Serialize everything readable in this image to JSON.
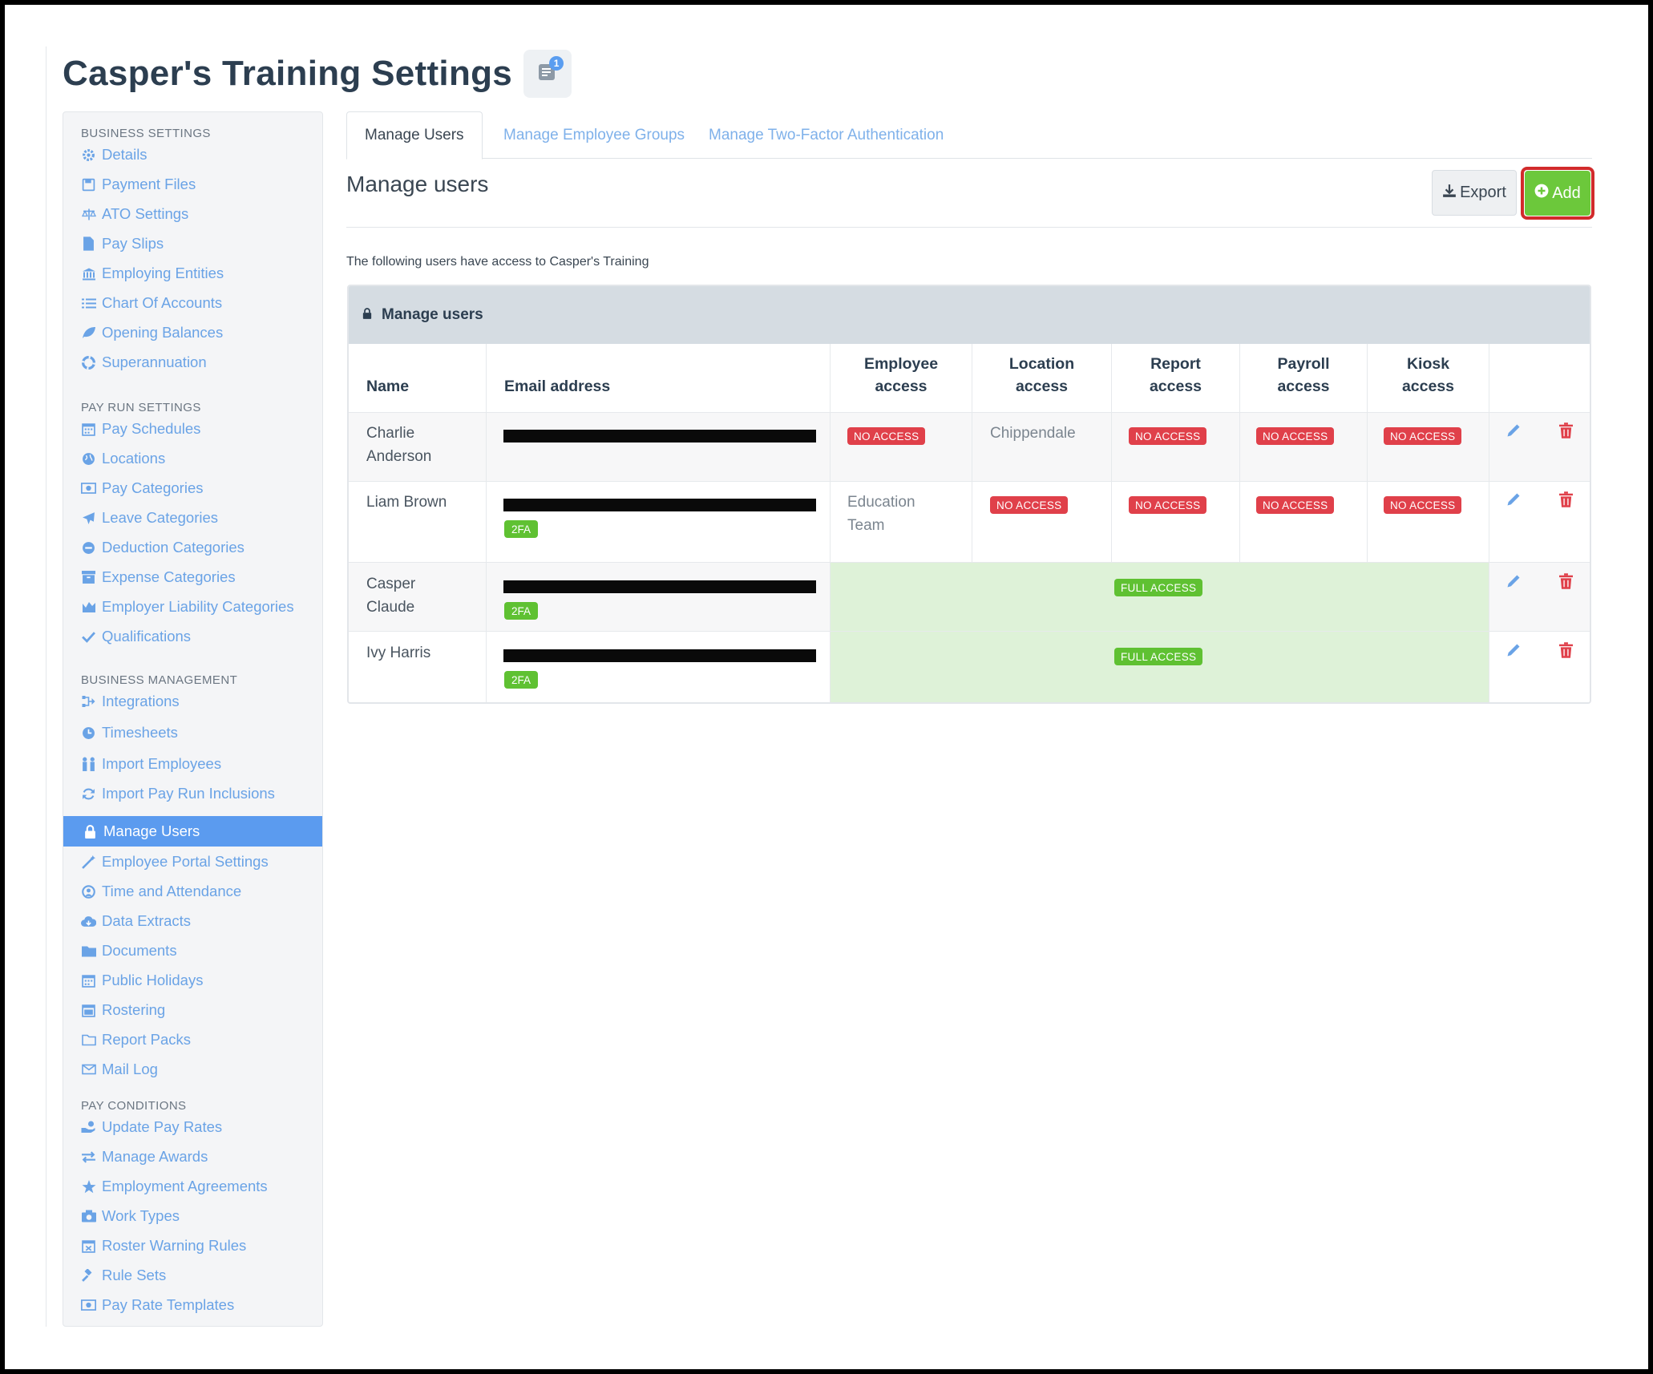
{
  "header": {
    "title": "Casper's Training Settings",
    "badge_count": "1",
    "icon": "notes-icon"
  },
  "sidebar": {
    "sections": [
      {
        "heading": "BUSINESS SETTINGS",
        "items": [
          {
            "label": "Details",
            "icon": "gear-icon"
          },
          {
            "label": "Payment Files",
            "icon": "floppy-icon"
          },
          {
            "label": "ATO Settings",
            "icon": "scale-icon"
          },
          {
            "label": "Pay Slips",
            "icon": "file-icon"
          },
          {
            "label": "Employing Entities",
            "icon": "bank-icon"
          },
          {
            "label": "Chart Of Accounts",
            "icon": "list-icon"
          },
          {
            "label": "Opening Balances",
            "icon": "leaf-icon"
          },
          {
            "label": "Superannuation",
            "icon": "lifebuoy-icon"
          }
        ]
      },
      {
        "heading": "PAY RUN SETTINGS",
        "items": [
          {
            "label": "Pay Schedules",
            "icon": "calendar-icon"
          },
          {
            "label": "Locations",
            "icon": "globe-icon"
          },
          {
            "label": "Pay Categories",
            "icon": "money-icon"
          },
          {
            "label": "Leave Categories",
            "icon": "plane-icon"
          },
          {
            "label": "Deduction Categories",
            "icon": "minus-circle-icon"
          },
          {
            "label": "Expense Categories",
            "icon": "archive-icon"
          },
          {
            "label": "Employer Liability Categories",
            "icon": "chart-icon"
          },
          {
            "label": "Qualifications",
            "icon": "check-icon"
          }
        ]
      },
      {
        "heading": "BUSINESS MANAGEMENT",
        "items": [
          {
            "label": "Integrations",
            "icon": "plug-icon"
          },
          {
            "label": "Timesheets",
            "icon": "clock-icon"
          },
          {
            "label": "Import Employees",
            "icon": "people-icon"
          },
          {
            "label": "Import Pay Run Inclusions",
            "icon": "refresh-icon"
          },
          {
            "label": "Manage Users",
            "icon": "lock-icon",
            "active": true
          },
          {
            "label": "Employee Portal Settings",
            "icon": "magic-wand-icon"
          },
          {
            "label": "Time and Attendance",
            "icon": "user-circle-icon"
          },
          {
            "label": "Data Extracts",
            "icon": "cloud-download-icon"
          },
          {
            "label": "Documents",
            "icon": "folder-icon"
          },
          {
            "label": "Public Holidays",
            "icon": "calendar-icon"
          },
          {
            "label": "Rostering",
            "icon": "calendar-grid-icon"
          },
          {
            "label": "Report Packs",
            "icon": "folder-open-icon"
          },
          {
            "label": "Mail Log",
            "icon": "envelope-icon"
          }
        ]
      },
      {
        "heading": "PAY CONDITIONS",
        "items": [
          {
            "label": "Update Pay Rates",
            "icon": "hand-money-icon"
          },
          {
            "label": "Manage Awards",
            "icon": "exchange-icon"
          },
          {
            "label": "Employment Agreements",
            "icon": "star-icon"
          },
          {
            "label": "Work Types",
            "icon": "camera-icon"
          },
          {
            "label": "Roster Warning Rules",
            "icon": "calendar-x-icon"
          },
          {
            "label": "Rule Sets",
            "icon": "gavel-icon"
          },
          {
            "label": "Pay Rate Templates",
            "icon": "money-icon"
          }
        ]
      }
    ]
  },
  "tabs": [
    {
      "label": "Manage Users",
      "active": true
    },
    {
      "label": "Manage Employee Groups"
    },
    {
      "label": "Manage Two-Factor Authentication"
    }
  ],
  "main": {
    "title": "Manage users",
    "export_label": "Export",
    "add_label": "Add",
    "intro": "The following users have access to Casper's Training",
    "panel_title": "Manage users"
  },
  "table": {
    "columns": {
      "name": "Name",
      "email": "Email address",
      "employee": [
        "Employee",
        "access"
      ],
      "location": [
        "Location",
        "access"
      ],
      "report": [
        "Report",
        "access"
      ],
      "payroll": [
        "Payroll",
        "access"
      ],
      "kiosk": [
        "Kiosk",
        "access"
      ]
    },
    "no_access": "NO ACCESS",
    "full_access": "FULL ACCESS",
    "twofa": "2FA",
    "rows": [
      {
        "name": [
          "Charlie",
          "Anderson"
        ],
        "twofa": false,
        "employee": "NO ACCESS",
        "location": "Chippendale",
        "report": "NO ACCESS",
        "payroll": "NO ACCESS",
        "kiosk": "NO ACCESS"
      },
      {
        "name": [
          "Liam Brown"
        ],
        "twofa": true,
        "employee": [
          "Education",
          "Team"
        ],
        "location": "NO ACCESS",
        "report": "NO ACCESS",
        "payroll": "NO ACCESS",
        "kiosk": "NO ACCESS"
      },
      {
        "name": [
          "Casper",
          "Claude"
        ],
        "twofa": true,
        "access": "FULL ACCESS"
      },
      {
        "name": [
          "Ivy Harris"
        ],
        "twofa": true,
        "access": "FULL ACCESS"
      }
    ]
  },
  "colors": {
    "accent": "#5b9bef",
    "add": "#6cc83b",
    "danger": "#e0404a",
    "full_bg": "#def2d8",
    "highlight": "#d12b2b"
  }
}
